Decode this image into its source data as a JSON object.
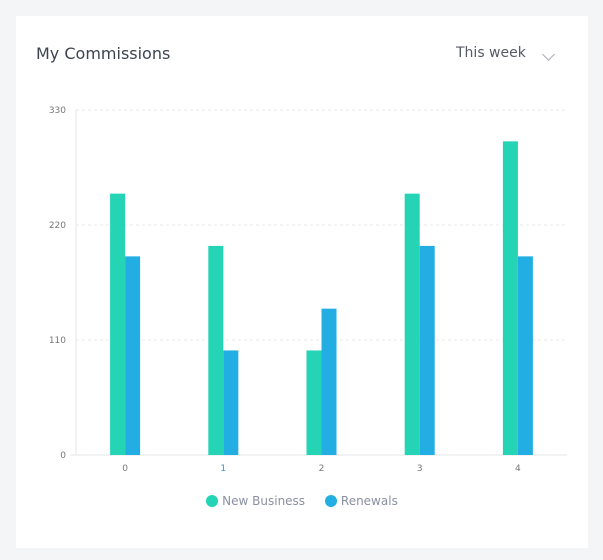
{
  "card": {
    "title": "My Commissions",
    "period": "This week"
  },
  "chart_data": {
    "type": "bar",
    "categories": [
      "0",
      "1",
      "2",
      "3",
      "4"
    ],
    "series": [
      {
        "name": "New Business",
        "color": "#24d4b4",
        "values": [
          250,
          200,
          100,
          250,
          300
        ]
      },
      {
        "name": "Renewals",
        "color": "#22aee3",
        "values": [
          190,
          100,
          140,
          200,
          190
        ]
      }
    ],
    "yticks": [
      0,
      110,
      220,
      330
    ],
    "ylim": [
      0,
      330
    ],
    "grid": true,
    "legend": "bottom"
  }
}
